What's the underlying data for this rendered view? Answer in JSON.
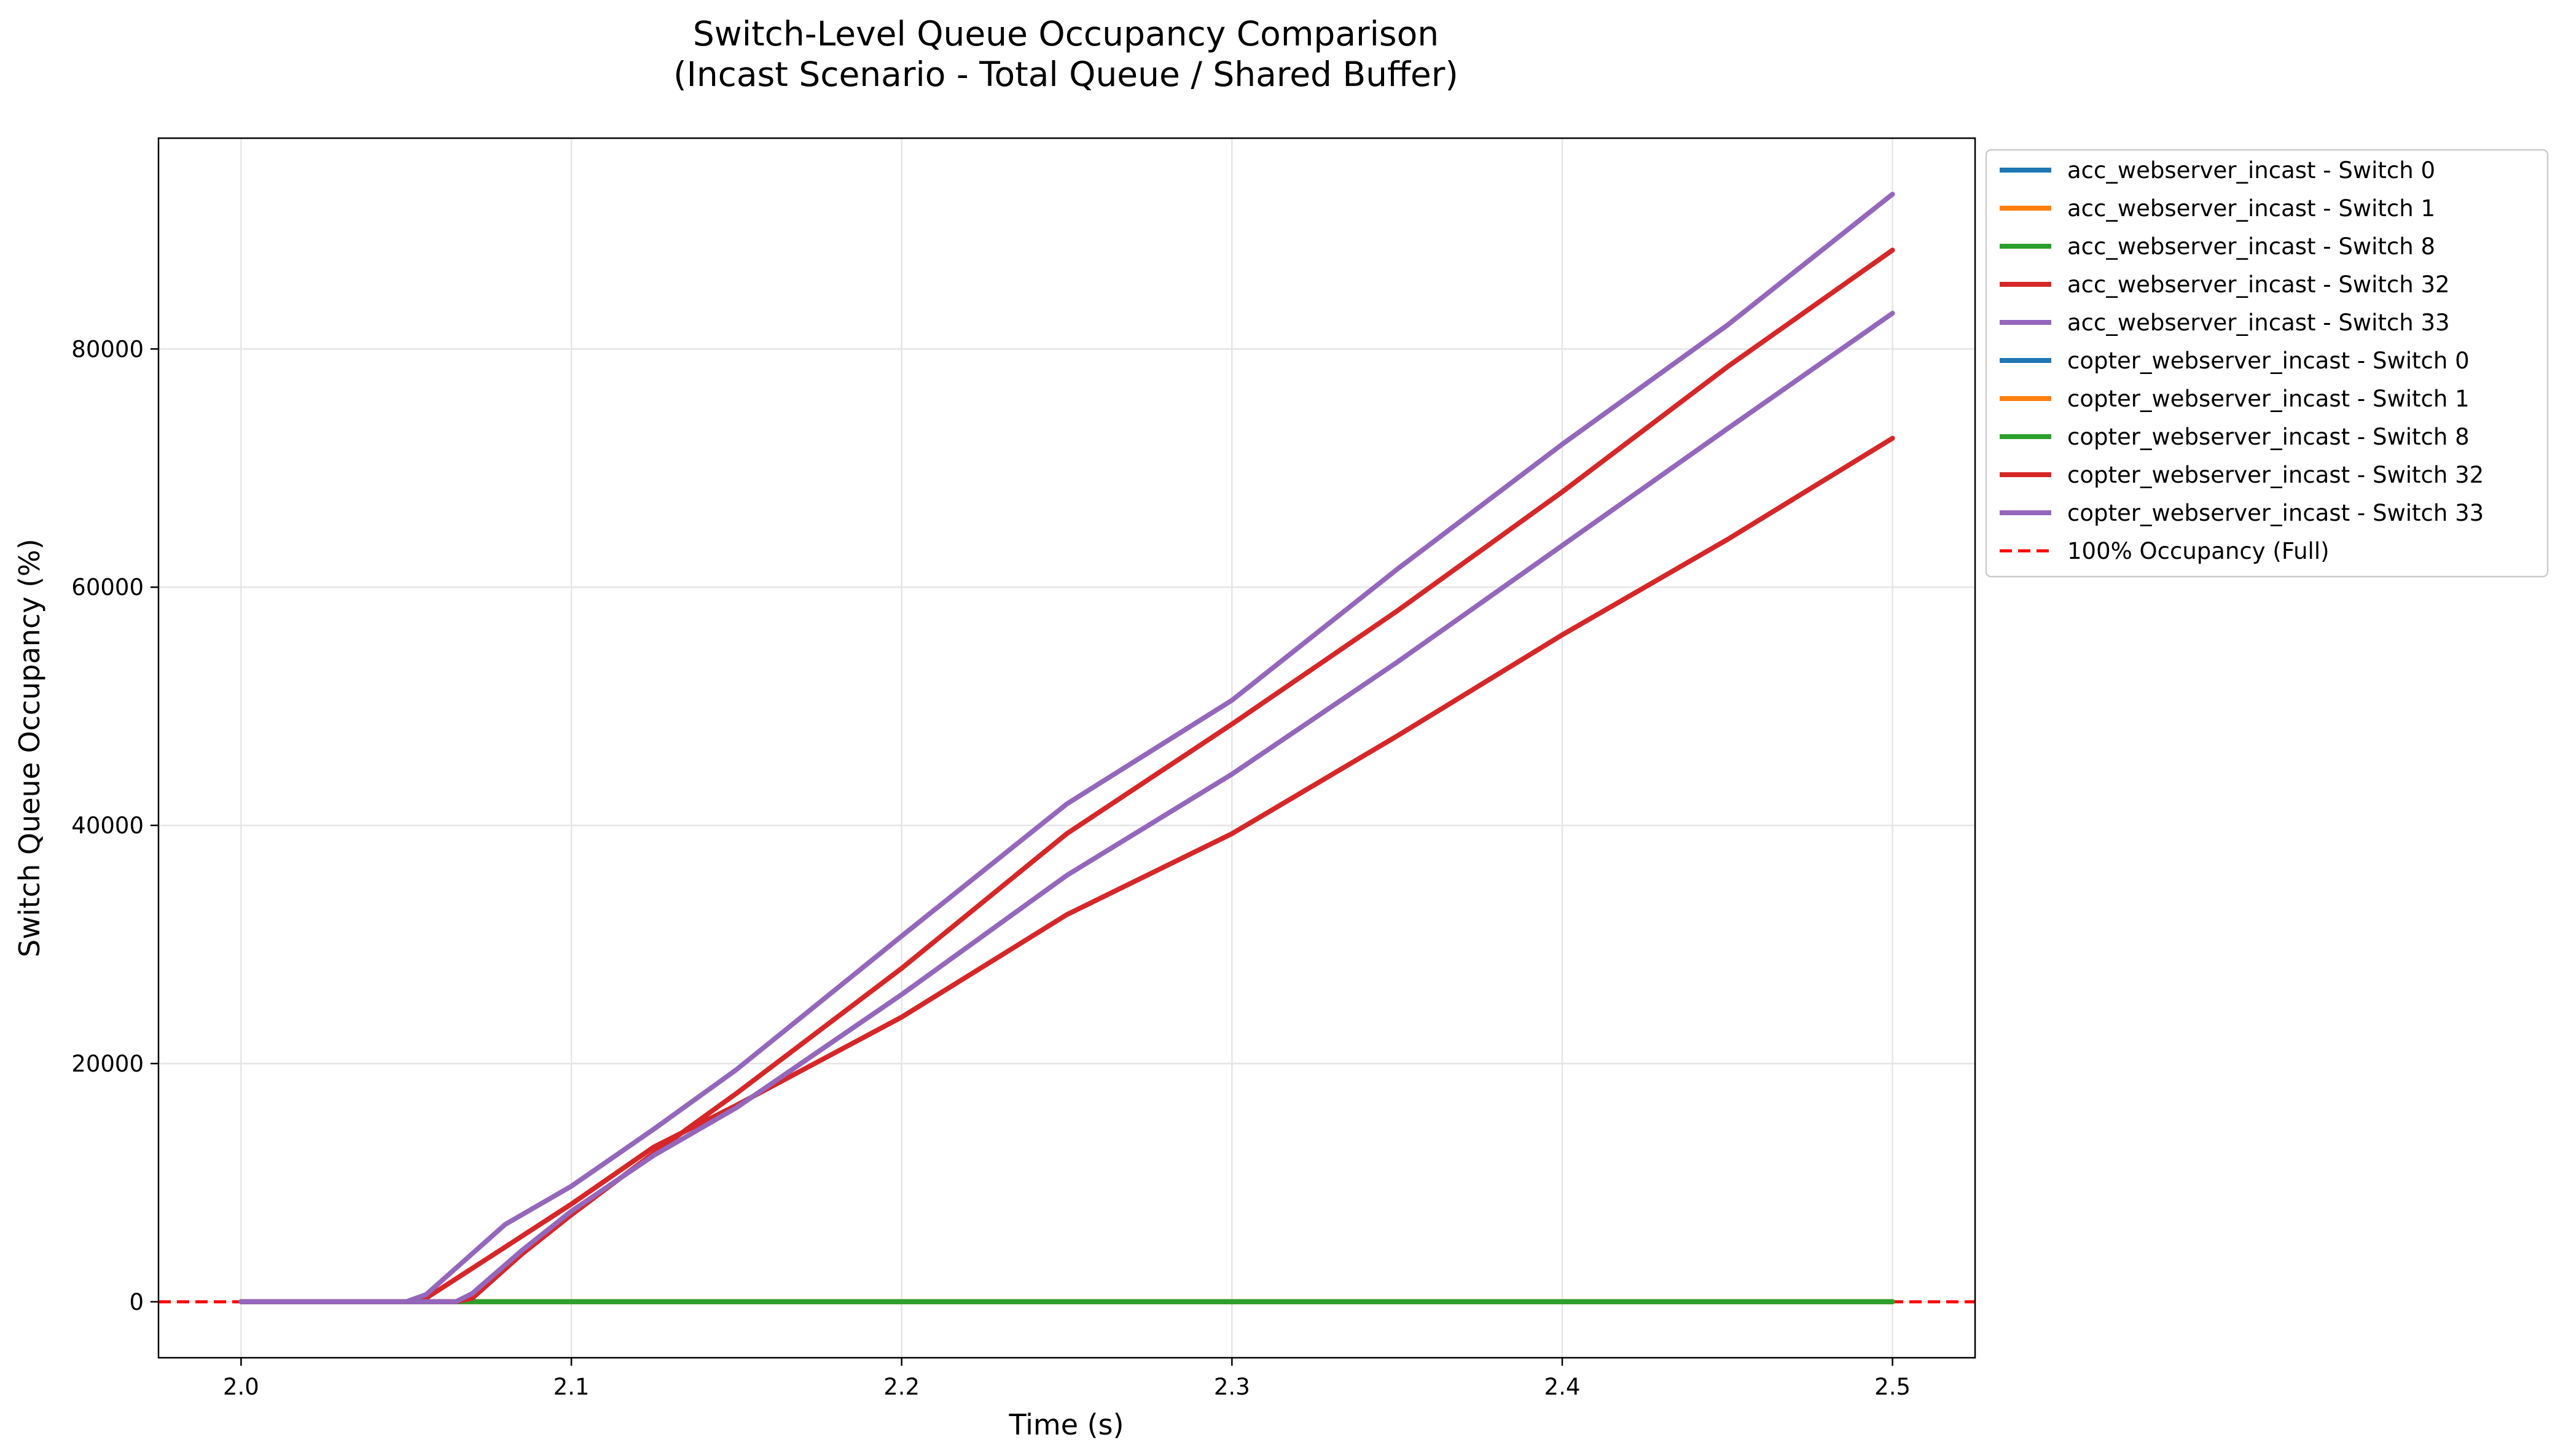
{
  "chart_data": {
    "type": "line",
    "title": "Switch-Level Queue Occupancy Comparison",
    "subtitle": "(Incast Scenario - Total Queue / Shared Buffer)",
    "xlabel": "Time (s)",
    "ylabel": "Switch Queue Occupancy (%)",
    "xlim": [
      1.975,
      2.525
    ],
    "ylim": [
      -4700,
      97700
    ],
    "x_ticks": [
      2.0,
      2.1,
      2.2,
      2.3,
      2.4,
      2.5
    ],
    "x_tick_labels": [
      "2.0",
      "2.1",
      "2.2",
      "2.3",
      "2.4",
      "2.5"
    ],
    "y_ticks": [
      0,
      20000,
      40000,
      60000,
      80000
    ],
    "y_tick_labels": [
      "0",
      "20000",
      "40000",
      "60000",
      "80000"
    ],
    "grid": true,
    "legend_placement": "outside-upper-right",
    "reference_line": {
      "y": 0,
      "color": "#ff0000",
      "style": "dashed",
      "label": "100% Occupancy (Full)"
    },
    "series": [
      {
        "name": "acc_webserver_incast - Switch 0",
        "color": "#1f77b4",
        "x": [
          2.0,
          2.5
        ],
        "y": [
          0,
          0
        ]
      },
      {
        "name": "acc_webserver_incast - Switch 1",
        "color": "#ff7f0e",
        "x": [
          2.0,
          2.5
        ],
        "y": [
          0,
          0
        ]
      },
      {
        "name": "acc_webserver_incast - Switch 8",
        "color": "#2ca02c",
        "x": [
          2.0,
          2.5
        ],
        "y": [
          0,
          0
        ]
      },
      {
        "name": "acc_webserver_incast - Switch 32",
        "color": "#d62728",
        "x": [
          2.0,
          2.05,
          2.056,
          2.08,
          2.1,
          2.125,
          2.15,
          2.2,
          2.25,
          2.3,
          2.35,
          2.4,
          2.45,
          2.5
        ],
        "y": [
          0,
          0,
          300,
          4600,
          8200,
          13000,
          16500,
          23900,
          32500,
          39300,
          47500,
          56000,
          64000,
          72500
        ]
      },
      {
        "name": "acc_webserver_incast - Switch 33",
        "color": "#9467bd",
        "x": [
          2.0,
          2.05,
          2.056,
          2.08,
          2.1,
          2.125,
          2.15,
          2.2,
          2.25,
          2.3,
          2.35,
          2.4,
          2.45,
          2.5
        ],
        "y": [
          0,
          0,
          600,
          6500,
          9700,
          14500,
          19500,
          30700,
          41800,
          50500,
          61500,
          72000,
          82000,
          93000
        ]
      },
      {
        "name": "copter_webserver_incast - Switch 0",
        "color": "#1f77b4",
        "x": [
          2.0,
          2.5
        ],
        "y": [
          0,
          0
        ]
      },
      {
        "name": "copter_webserver_incast - Switch 1",
        "color": "#ff7f0e",
        "x": [
          2.0,
          2.5
        ],
        "y": [
          0,
          0
        ]
      },
      {
        "name": "copter_webserver_incast - Switch 8",
        "color": "#2ca02c",
        "x": [
          2.0,
          2.5
        ],
        "y": [
          0,
          0
        ]
      },
      {
        "name": "copter_webserver_incast - Switch 32",
        "color": "#d62728",
        "x": [
          2.0,
          2.065,
          2.07,
          2.085,
          2.1,
          2.125,
          2.15,
          2.2,
          2.25,
          2.3,
          2.35,
          2.4,
          2.45,
          2.5
        ],
        "y": [
          0,
          0,
          300,
          4000,
          7300,
          12500,
          17500,
          28000,
          39300,
          48500,
          58000,
          68000,
          78500,
          88300
        ]
      },
      {
        "name": "copter_webserver_incast - Switch 33",
        "color": "#9467bd",
        "x": [
          2.0,
          2.065,
          2.07,
          2.085,
          2.1,
          2.125,
          2.15,
          2.2,
          2.25,
          2.3,
          2.35,
          2.4,
          2.45,
          2.5
        ],
        "y": [
          0,
          0,
          700,
          4300,
          7600,
          12300,
          16300,
          25800,
          35800,
          44300,
          53700,
          63500,
          73300,
          83000
        ]
      }
    ],
    "legend_entries": [
      {
        "label": "acc_webserver_incast - Switch 0",
        "color": "#1f77b4",
        "style": "solid"
      },
      {
        "label": "acc_webserver_incast - Switch 1",
        "color": "#ff7f0e",
        "style": "solid"
      },
      {
        "label": "acc_webserver_incast - Switch 8",
        "color": "#2ca02c",
        "style": "solid"
      },
      {
        "label": "acc_webserver_incast - Switch 32",
        "color": "#d62728",
        "style": "solid"
      },
      {
        "label": "acc_webserver_incast - Switch 33",
        "color": "#9467bd",
        "style": "solid"
      },
      {
        "label": "copter_webserver_incast - Switch 0",
        "color": "#1f77b4",
        "style": "solid"
      },
      {
        "label": "copter_webserver_incast - Switch 1",
        "color": "#ff7f0e",
        "style": "solid"
      },
      {
        "label": "copter_webserver_incast - Switch 8",
        "color": "#2ca02c",
        "style": "solid"
      },
      {
        "label": "copter_webserver_incast - Switch 32",
        "color": "#d62728",
        "style": "solid"
      },
      {
        "label": "copter_webserver_incast - Switch 33",
        "color": "#9467bd",
        "style": "solid"
      },
      {
        "label": "100% Occupancy (Full)",
        "color": "#ff0000",
        "style": "dashed"
      }
    ]
  }
}
